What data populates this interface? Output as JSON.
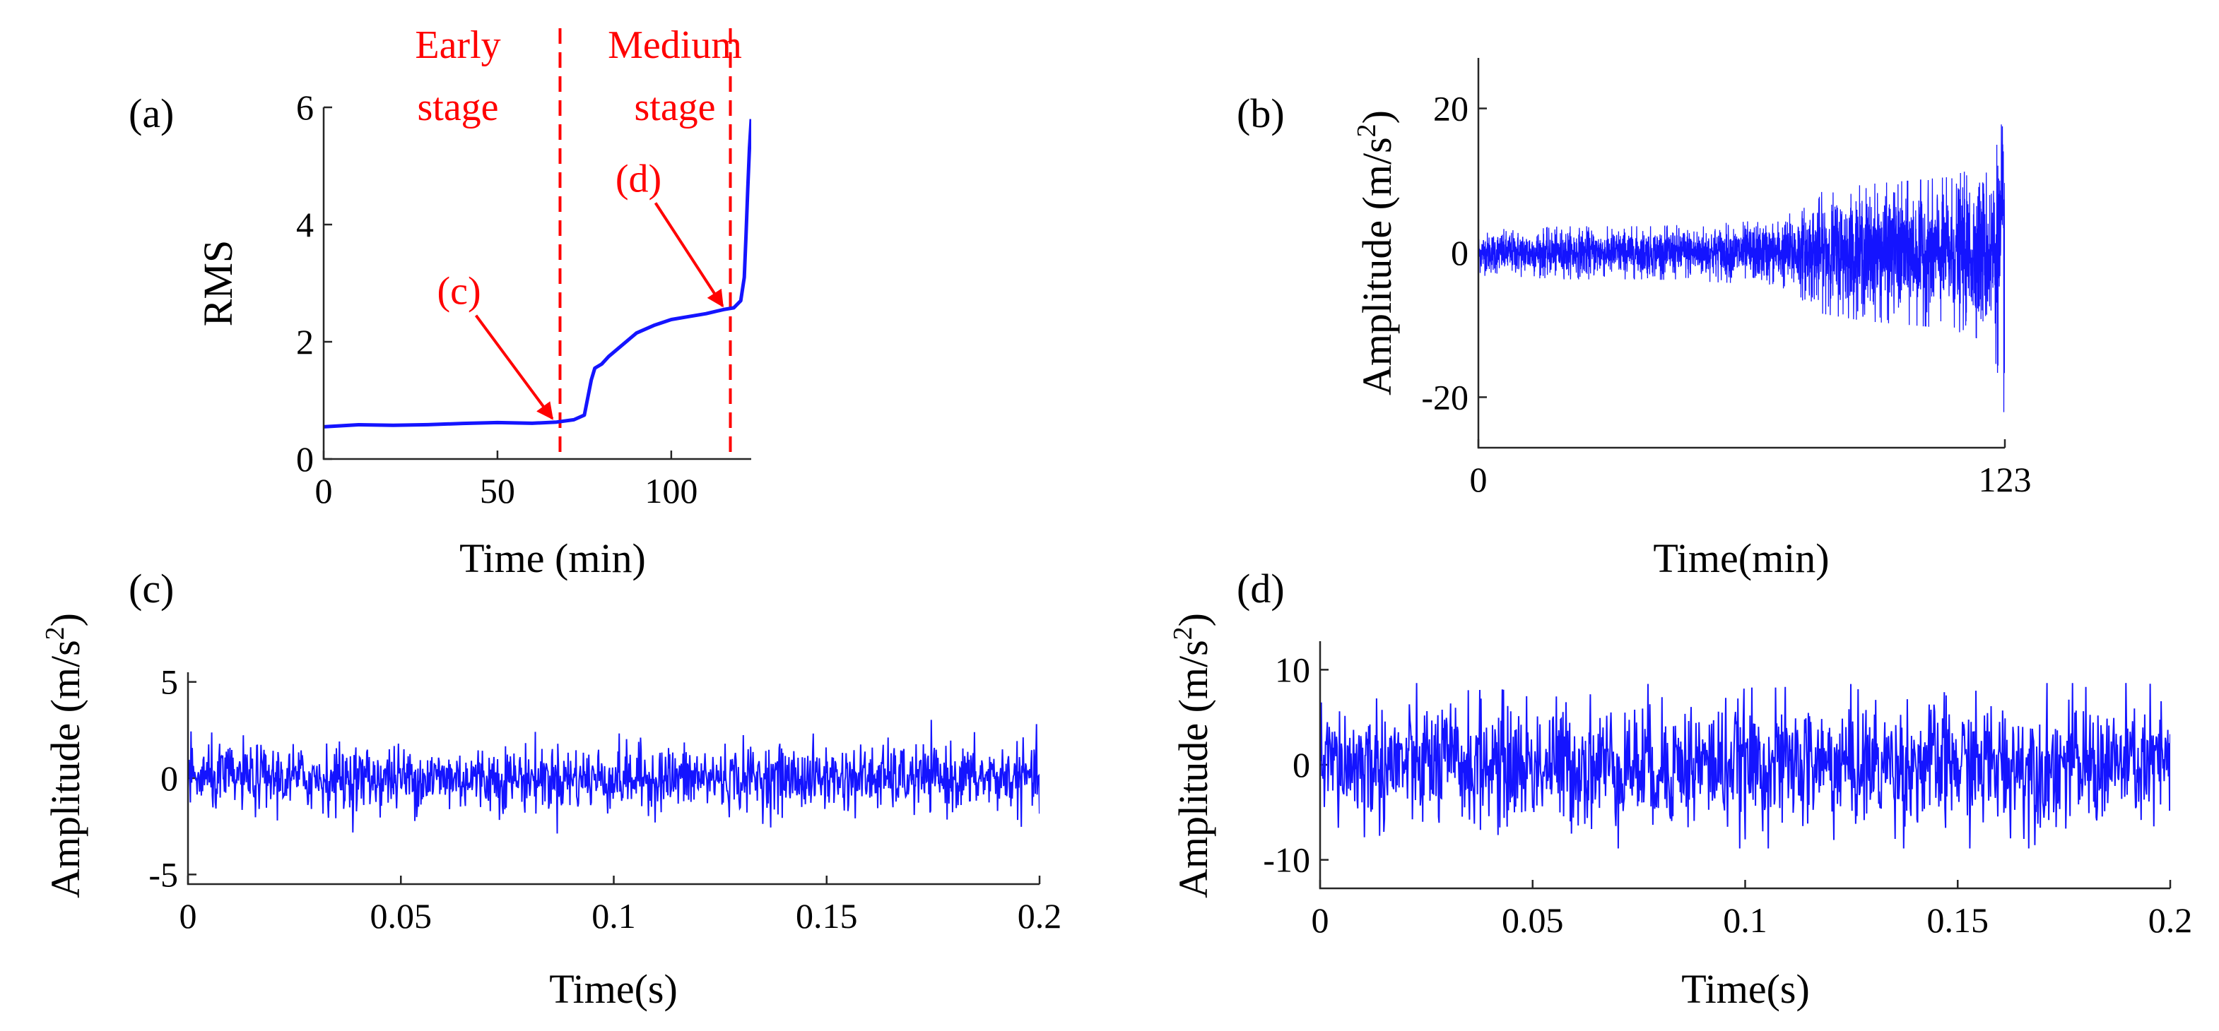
{
  "chart_data": [
    {
      "panel": "(a)",
      "type": "line",
      "xlabel": "Time (min)",
      "ylabel": "RMS",
      "xlim": [
        0,
        123
      ],
      "ylim": [
        0,
        6
      ],
      "xticks": [
        0,
        50,
        100
      ],
      "yticks": [
        0,
        2,
        4,
        6
      ],
      "series": [
        {
          "name": "RMS",
          "color": "#1414ff",
          "x": [
            0,
            10,
            20,
            30,
            40,
            50,
            60,
            67,
            72,
            75,
            76,
            77,
            78,
            80,
            82,
            85,
            88,
            90,
            95,
            100,
            105,
            110,
            115,
            118,
            120,
            121,
            121.5,
            122,
            122.5,
            123
          ],
          "y": [
            0.55,
            0.57,
            0.58,
            0.6,
            0.6,
            0.61,
            0.62,
            0.63,
            0.67,
            0.75,
            1.05,
            1.35,
            1.55,
            1.62,
            1.75,
            1.9,
            2.05,
            2.15,
            2.28,
            2.38,
            2.43,
            2.48,
            2.55,
            2.58,
            2.7,
            3.1,
            3.8,
            4.6,
            5.3,
            5.8
          ]
        }
      ],
      "vlines": [
        {
          "x": 68,
          "color": "#ff0000",
          "style": "dashed"
        },
        {
          "x": 117,
          "color": "#ff0000",
          "style": "dashed"
        }
      ],
      "stage_labels": [
        {
          "line1": "Early",
          "line2": "stage"
        },
        {
          "line1": "Medium",
          "line2": "stage"
        }
      ],
      "annotations": [
        {
          "text": "(c)",
          "target_x": 67,
          "target_y": 0.63,
          "color": "#ff0000"
        },
        {
          "text": "(d)",
          "target_x": 116,
          "target_y": 2.55,
          "color": "#ff0000"
        }
      ]
    },
    {
      "panel": "(b)",
      "type": "line",
      "xlabel": "Time(min)",
      "ylabel": "Amplitude (m/s",
      "ylabel_sup": "2",
      "ylabel_close": ")",
      "xlim": [
        0,
        123
      ],
      "ylim": [
        -27,
        27
      ],
      "xticks": [
        0,
        123
      ],
      "yticks": [
        -20,
        0,
        20
      ],
      "signal": {
        "color": "#1414ff",
        "note": "vibration signal; envelope amplitude in m/s^2 by time (min)",
        "envelope_t": [
          0,
          20,
          40,
          60,
          70,
          75,
          80,
          90,
          100,
          110,
          115,
          120,
          122,
          123
        ],
        "envelope_amp": [
          3,
          3.5,
          3.5,
          4,
          4.5,
          6,
          8,
          9,
          9.5,
          10,
          11,
          12,
          18,
          22
        ]
      }
    },
    {
      "panel": "(c)",
      "type": "line",
      "xlabel": "Time(s)",
      "ylabel": "Amplitude (m/s",
      "ylabel_sup": "2",
      "ylabel_close": ")",
      "xlim": [
        0,
        0.2
      ],
      "ylim": [
        -5.5,
        5.5
      ],
      "xticks": [
        0,
        0.05,
        0.1,
        0.15,
        0.2
      ],
      "yticks": [
        -5,
        0,
        5
      ],
      "signal": {
        "color": "#1414ff",
        "std": 0.85,
        "peak_max": 3.1,
        "peak_min": -2.9
      }
    },
    {
      "panel": "(d)",
      "type": "line",
      "xlabel": "Time(s)",
      "ylabel": "Amplitude (m/s",
      "ylabel_sup": "2",
      "ylabel_close": ")",
      "xlim": [
        0,
        0.2
      ],
      "ylim": [
        -13,
        13
      ],
      "xticks": [
        0,
        0.05,
        0.1,
        0.15,
        0.2
      ],
      "yticks": [
        -10,
        0,
        10
      ],
      "signal": {
        "color": "#1414ff",
        "std": 3.3,
        "peak_max": 8.6,
        "peak_min": -8.8
      }
    }
  ]
}
